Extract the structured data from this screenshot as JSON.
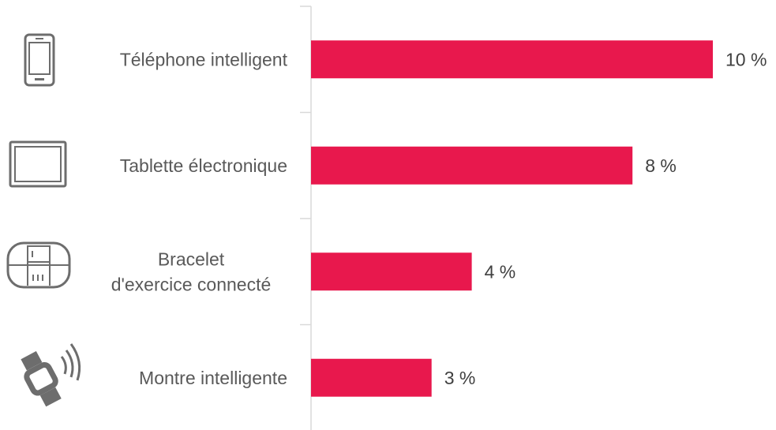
{
  "chart_data": {
    "type": "bar",
    "orientation": "horizontal",
    "categories": [
      [
        "Téléphone intelligent"
      ],
      [
        "Tablette électronique"
      ],
      [
        "Bracelet",
        "d'exercice connecté"
      ],
      [
        "Montre intelligente"
      ]
    ],
    "values": [
      10,
      8,
      4,
      3
    ],
    "value_labels": [
      "10 %",
      "8 %",
      "4 %",
      "3 %"
    ],
    "icons": [
      "smartphone-icon",
      "tablet-icon",
      "fitness-bracelet-icon",
      "smartwatch-icon"
    ],
    "xlim": [
      0,
      10
    ],
    "bar_color": "#E8184D",
    "axis_color": "#D9D9D9",
    "grid": false,
    "legend": "none"
  }
}
